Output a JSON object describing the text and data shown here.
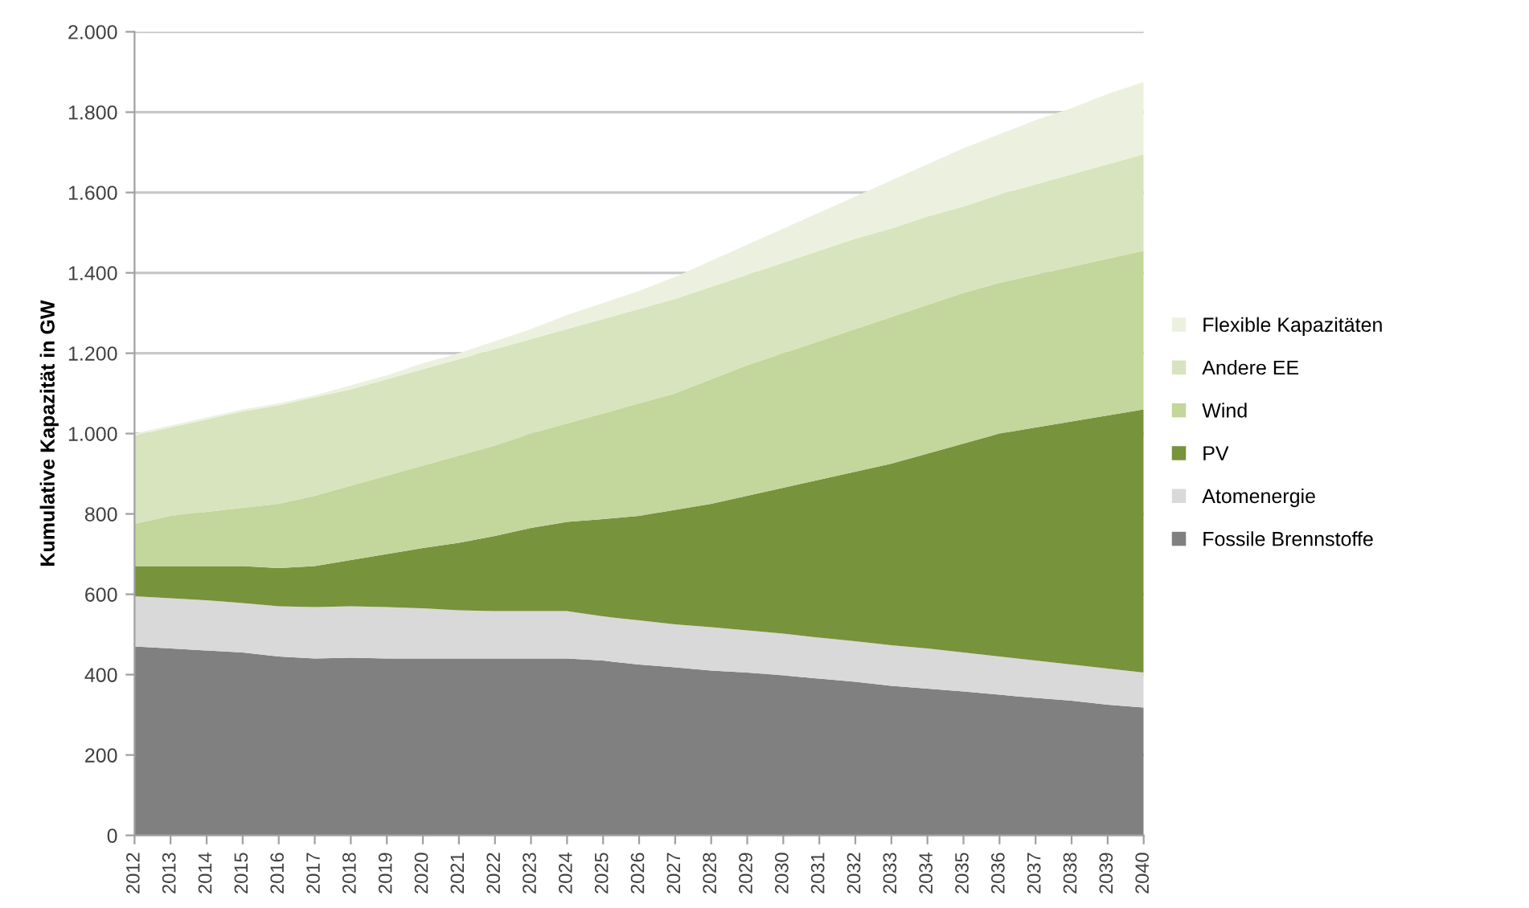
{
  "chart_data": {
    "type": "area",
    "stacked": true,
    "ylabel": "Kumulative Kapazität in GW",
    "categories": [
      "2012",
      "2013",
      "2014",
      "2015",
      "2016",
      "2017",
      "2018",
      "2019",
      "2020",
      "2021",
      "2022",
      "2023",
      "2024",
      "2025",
      "2026",
      "2027",
      "2028",
      "2029",
      "2030",
      "2031",
      "2032",
      "2033",
      "2034",
      "2035",
      "2036",
      "2037",
      "2038",
      "2039",
      "2040"
    ],
    "series": [
      {
        "name": "Fossile Brennstoffe",
        "color": "#808080",
        "values": [
          470,
          465,
          460,
          455,
          445,
          440,
          442,
          440,
          440,
          440,
          440,
          440,
          440,
          435,
          425,
          418,
          410,
          405,
          398,
          390,
          382,
          372,
          365,
          358,
          350,
          342,
          335,
          325,
          318
        ]
      },
      {
        "name": "Atomenergie",
        "color": "#d9d9d9",
        "values": [
          125,
          125,
          125,
          123,
          125,
          128,
          128,
          128,
          125,
          120,
          118,
          118,
          118,
          110,
          110,
          107,
          108,
          105,
          104,
          102,
          101,
          101,
          100,
          97,
          95,
          93,
          90,
          90,
          87
        ]
      },
      {
        "name": "PV",
        "color": "#77933c",
        "values": [
          75,
          80,
          85,
          92,
          95,
          102,
          115,
          132,
          150,
          168,
          187,
          207,
          222,
          242,
          260,
          285,
          307,
          335,
          363,
          393,
          422,
          452,
          485,
          520,
          555,
          580,
          605,
          630,
          655
        ]
      },
      {
        "name": "Wind",
        "color": "#c3d69b",
        "values": [
          105,
          125,
          135,
          145,
          160,
          175,
          185,
          195,
          205,
          217,
          225,
          235,
          245,
          263,
          280,
          290,
          310,
          325,
          335,
          345,
          355,
          365,
          370,
          375,
          375,
          380,
          385,
          390,
          395
        ]
      },
      {
        "name": "Andere EE",
        "color": "#d7e4bd",
        "values": [
          220,
          220,
          230,
          240,
          245,
          245,
          240,
          240,
          240,
          240,
          240,
          235,
          235,
          235,
          235,
          235,
          230,
          225,
          225,
          225,
          225,
          220,
          220,
          215,
          220,
          225,
          230,
          235,
          240
        ]
      },
      {
        "name": "Flexible Kapazitäten",
        "color": "#ebf1de",
        "values": [
          5,
          5,
          5,
          5,
          5,
          5,
          10,
          10,
          15,
          15,
          20,
          25,
          35,
          40,
          45,
          55,
          65,
          75,
          85,
          95,
          105,
          120,
          130,
          145,
          150,
          160,
          165,
          175,
          180
        ]
      }
    ],
    "ylim": [
      0,
      2000
    ],
    "yticks": [
      0,
      200,
      400,
      600,
      800,
      {
        "value": 1000,
        "label": "1.000"
      },
      {
        "value": 1200,
        "label": "1.200"
      },
      {
        "value": 1400,
        "label": "1.400"
      },
      {
        "value": 1600,
        "label": "1.600"
      },
      {
        "value": 1800,
        "label": "1.800"
      },
      {
        "value": 2000,
        "label": "2.000"
      }
    ],
    "grid": "y",
    "legend": "right"
  }
}
